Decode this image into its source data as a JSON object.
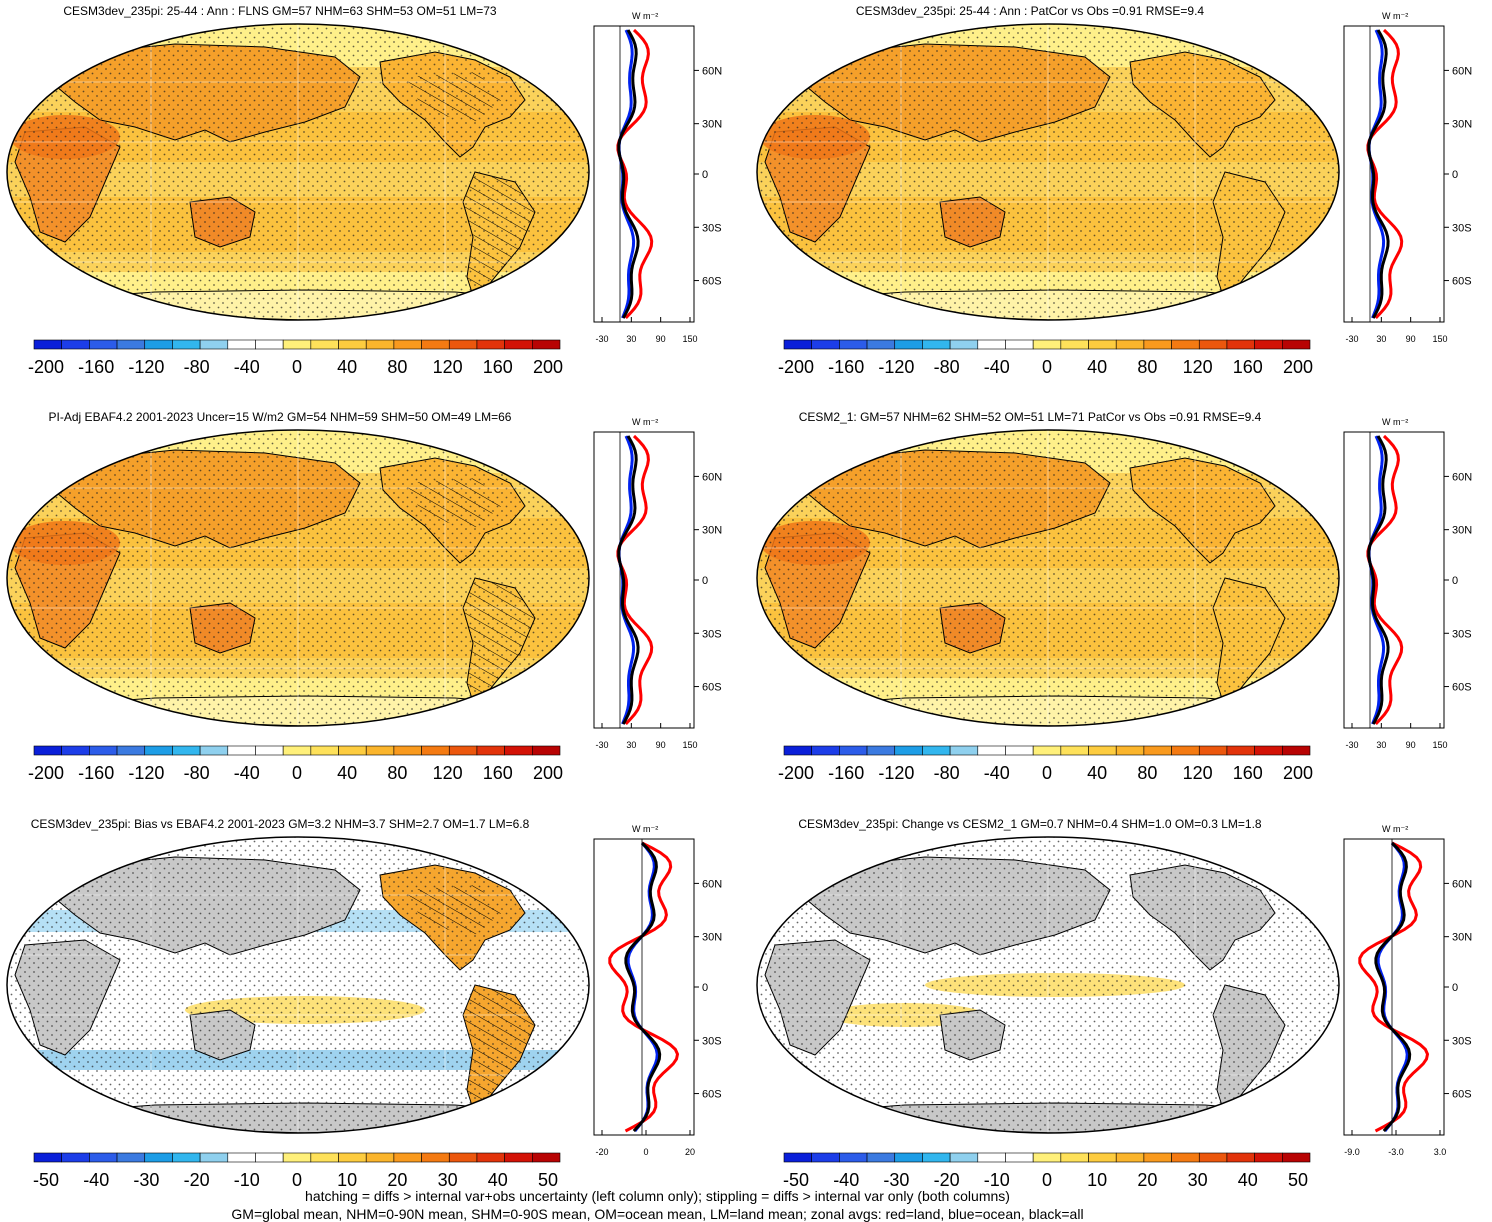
{
  "panels": [
    {
      "title": "CESM3dev_235pi: 25-44 : Ann : FLNS GM=57 NHM=63 SHM=53 OM=51 LM=73",
      "colorbar": {
        "labels": [
          "-200",
          "-160",
          "-120",
          "-80",
          "-40",
          "0",
          "40",
          "80",
          "120",
          "160",
          "200"
        ]
      },
      "zonal": {
        "unit": "W m⁻²",
        "x_ticks": [
          "-30",
          "30",
          "90",
          "150"
        ]
      }
    },
    {
      "title": "CESM3dev_235pi: 25-44 : Ann : PatCor vs Obs =0.91 RMSE=9.4",
      "colorbar": {
        "labels": [
          "-200",
          "-160",
          "-120",
          "-80",
          "-40",
          "0",
          "40",
          "80",
          "120",
          "160",
          "200"
        ]
      },
      "zonal": {
        "unit": "W m⁻²",
        "x_ticks": [
          "-30",
          "30",
          "90",
          "150"
        ]
      }
    },
    {
      "title": "PI-Adj EBAF4.2 2001-2023 Uncer=15 W/m2 GM=54 NHM=59 SHM=50 OM=49 LM=66",
      "colorbar": {
        "labels": [
          "-200",
          "-160",
          "-120",
          "-80",
          "-40",
          "0",
          "40",
          "80",
          "120",
          "160",
          "200"
        ]
      },
      "zonal": {
        "unit": "W m⁻²",
        "x_ticks": [
          "-30",
          "30",
          "90",
          "150"
        ]
      }
    },
    {
      "title": "CESM2_1: GM=57 NHM=62 SHM=52 OM=51 LM=71 PatCor vs Obs =0.91 RMSE=9.4",
      "colorbar": {
        "labels": [
          "-200",
          "-160",
          "-120",
          "-80",
          "-40",
          "0",
          "40",
          "80",
          "120",
          "160",
          "200"
        ]
      },
      "zonal": {
        "unit": "W m⁻²",
        "x_ticks": [
          "-30",
          "30",
          "90",
          "150"
        ]
      }
    },
    {
      "title": "CESM3dev_235pi: Bias vs EBAF4.2 2001-2023 GM=3.2 NHM=3.7 SHM=2.7 OM=1.7 LM=6.8",
      "colorbar": {
        "labels": [
          "-50",
          "-40",
          "-30",
          "-20",
          "-10",
          "0",
          "10",
          "20",
          "30",
          "40",
          "50"
        ]
      },
      "zonal": {
        "unit": "W m⁻²",
        "x_ticks": [
          "-20",
          "0",
          "20"
        ]
      }
    },
    {
      "title": "CESM3dev_235pi: Change vs CESM2_1 GM=0.7 NHM=0.4 SHM=1.0 OM=0.3 LM=1.8",
      "colorbar": {
        "labels": [
          "-50",
          "-40",
          "-30",
          "-20",
          "-10",
          "0",
          "10",
          "20",
          "30",
          "40",
          "50"
        ]
      },
      "zonal": {
        "unit": "W m⁻²",
        "x_ticks": [
          "-9.0",
          "-3.0",
          "3.0"
        ]
      }
    }
  ],
  "lat_labels": [
    "60N",
    "30N",
    "0",
    "30S",
    "60S"
  ],
  "colors": {
    "main_scale": [
      "#0a1fd9",
      "#1c3de8",
      "#2c5ce9",
      "#3b7ae0",
      "#1d9de6",
      "#32b6ee",
      "#8fd0ee",
      "#ffffff",
      "#ffffff",
      "#fff07a",
      "#fee15a",
      "#fdcc3f",
      "#fbb52c",
      "#f99a1e",
      "#f47a12",
      "#ec570d",
      "#e2330a",
      "#d31206",
      "#b80303"
    ],
    "land": "#c8c8c8",
    "zonal_land": "#ff0000",
    "zonal_ocean": "#0022ee",
    "zonal_all": "#000000"
  },
  "footer": [
    "hatching = diffs > internal var+obs uncertainty (left column only); stippling = diffs > internal var only (both columns)",
    "GM=global mean, NHM=0-90N mean, SHM=0-90S mean, OM=ocean mean, LM=land mean; zonal avgs: red=land, blue=ocean, black=all"
  ]
}
